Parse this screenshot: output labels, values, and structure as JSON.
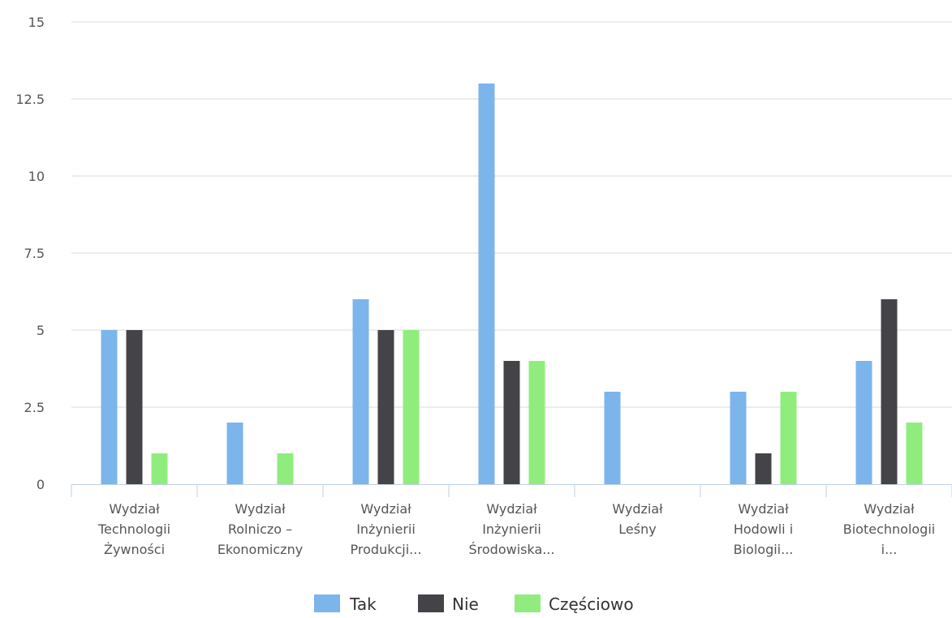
{
  "chart_data": {
    "type": "bar",
    "categories": [
      [
        "Wydział",
        "Technologii",
        "Żywności"
      ],
      [
        "Wydział",
        "Rolniczo –",
        "Ekonomiczny"
      ],
      [
        "Wydział",
        "Inżynierii",
        "Produkcji..."
      ],
      [
        "Wydział",
        "Inżynierii",
        "Środowiska..."
      ],
      [
        "Wydział",
        "Leśny"
      ],
      [
        "Wydział",
        "Hodowli i",
        "Biologii..."
      ],
      [
        "Wydział",
        "Biotechnologii",
        "i..."
      ]
    ],
    "series": [
      {
        "name": "Tak",
        "color": "#7cb5ec",
        "values": [
          5,
          2,
          6,
          13,
          3,
          3,
          4
        ]
      },
      {
        "name": "Nie",
        "color": "#434348",
        "values": [
          5,
          0,
          5,
          4,
          0,
          1,
          6
        ]
      },
      {
        "name": "Częściowo",
        "color": "#90ed7d",
        "values": [
          1,
          1,
          5,
          4,
          0,
          3,
          2
        ]
      }
    ],
    "ylim": [
      0,
      15
    ],
    "yticks": [
      "0",
      "2.5",
      "5",
      "7.5",
      "10",
      "12.5",
      "15"
    ],
    "grid": true,
    "legend_position": "bottom-center"
  }
}
